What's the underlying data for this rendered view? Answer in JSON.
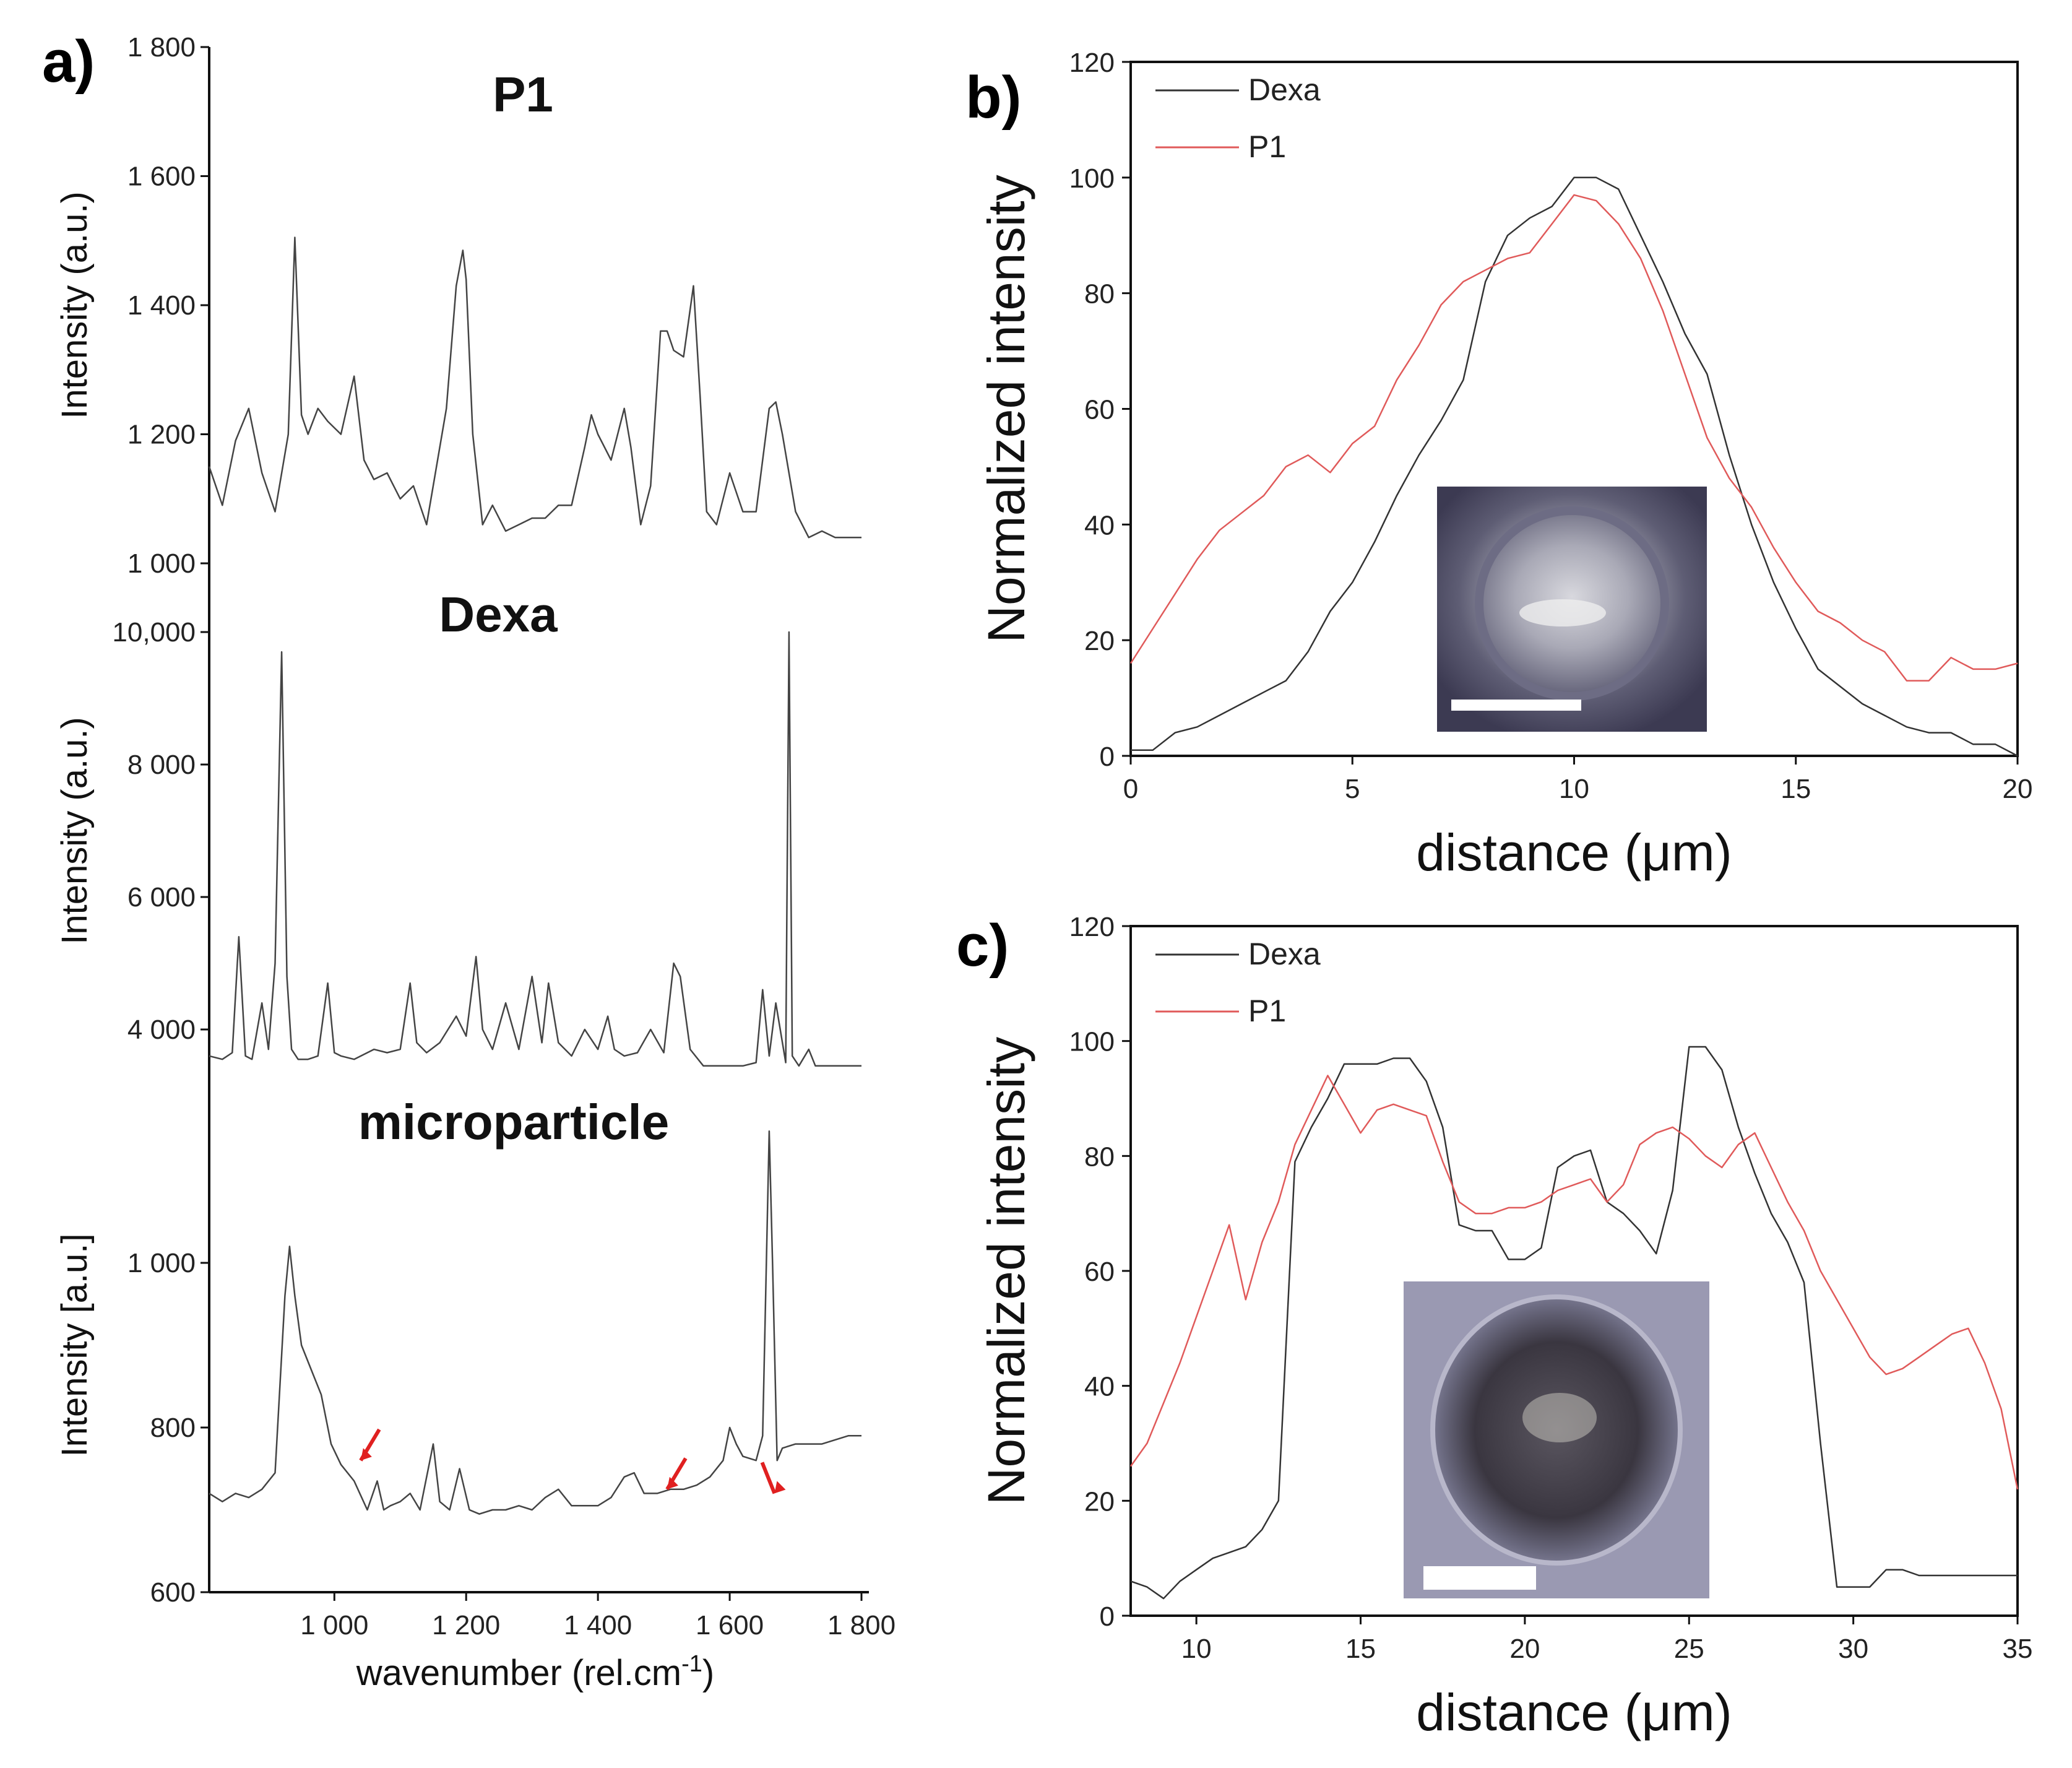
{
  "figure": {
    "panel_labels": [
      "a)",
      "b)",
      "c)"
    ]
  },
  "chart_data": [
    {
      "id": "a_p1",
      "type": "line",
      "title": "P1",
      "xlabel": "",
      "ylabel": "Intensity (a.u.)",
      "xlim": [
        810,
        1800
      ],
      "ylim": [
        1000,
        1800
      ],
      "yticks": [
        1000,
        1200,
        1400,
        1600,
        1800
      ],
      "ytick_labels": [
        "1 000",
        "1 200",
        "1 400",
        "1 600",
        "1 800"
      ],
      "series": [
        {
          "name": "P1 spectrum",
          "x": [
            810,
            830,
            850,
            870,
            890,
            910,
            930,
            940,
            950,
            960,
            975,
            990,
            1010,
            1030,
            1045,
            1060,
            1080,
            1100,
            1120,
            1140,
            1155,
            1170,
            1185,
            1195,
            1200,
            1210,
            1225,
            1240,
            1260,
            1280,
            1300,
            1320,
            1340,
            1360,
            1380,
            1390,
            1400,
            1420,
            1440,
            1450,
            1465,
            1480,
            1495,
            1505,
            1515,
            1530,
            1545,
            1555,
            1565,
            1580,
            1600,
            1620,
            1640,
            1660,
            1670,
            1680,
            1700,
            1720,
            1740,
            1760,
            1780,
            1800
          ],
          "values": [
            1150,
            1090,
            1190,
            1240,
            1140,
            1080,
            1200,
            1505,
            1230,
            1200,
            1240,
            1220,
            1200,
            1290,
            1160,
            1130,
            1140,
            1100,
            1120,
            1060,
            1150,
            1240,
            1430,
            1485,
            1440,
            1200,
            1060,
            1090,
            1050,
            1060,
            1070,
            1070,
            1090,
            1090,
            1180,
            1230,
            1200,
            1160,
            1240,
            1180,
            1060,
            1120,
            1360,
            1360,
            1330,
            1320,
            1430,
            1260,
            1080,
            1060,
            1140,
            1080,
            1080,
            1240,
            1250,
            1200,
            1080,
            1040,
            1050,
            1040,
            1040,
            1040
          ]
        }
      ]
    },
    {
      "id": "a_dexa",
      "type": "line",
      "title": "Dexa",
      "xlabel": "",
      "ylabel": "Intensity (a.u.)",
      "xlim": [
        810,
        1800
      ],
      "ylim": [
        3000,
        11000
      ],
      "yticks": [
        4000,
        6000,
        8000,
        10000
      ],
      "ytick_labels": [
        "4 000",
        "6 000",
        "8 000",
        "10,000"
      ],
      "series": [
        {
          "name": "Dexa spectrum",
          "x": [
            810,
            830,
            845,
            855,
            865,
            875,
            890,
            900,
            910,
            920,
            928,
            935,
            945,
            960,
            975,
            990,
            1000,
            1010,
            1030,
            1060,
            1080,
            1100,
            1115,
            1125,
            1140,
            1160,
            1185,
            1200,
            1215,
            1225,
            1240,
            1260,
            1280,
            1300,
            1315,
            1325,
            1340,
            1360,
            1380,
            1400,
            1415,
            1425,
            1440,
            1460,
            1480,
            1500,
            1515,
            1525,
            1540,
            1560,
            1580,
            1600,
            1620,
            1640,
            1650,
            1660,
            1670,
            1685,
            1690,
            1695,
            1705,
            1720,
            1730,
            1750,
            1770,
            1800
          ],
          "values": [
            3600,
            3550,
            3650,
            5400,
            3600,
            3550,
            4400,
            3700,
            5000,
            9700,
            4800,
            3700,
            3550,
            3550,
            3600,
            4700,
            3650,
            3600,
            3550,
            3700,
            3650,
            3700,
            4700,
            3800,
            3650,
            3800,
            4200,
            3900,
            5100,
            4000,
            3700,
            4400,
            3700,
            4800,
            3800,
            4700,
            3800,
            3600,
            4000,
            3700,
            4200,
            3700,
            3600,
            3650,
            4000,
            3650,
            5000,
            4800,
            3700,
            3450,
            3450,
            3450,
            3450,
            3500,
            4600,
            3600,
            4400,
            3500,
            10000,
            3600,
            3450,
            3700,
            3450,
            3450,
            3450,
            3450
          ]
        }
      ]
    },
    {
      "id": "a_micro",
      "type": "line",
      "title": "microparticle",
      "xlabel": "wavenumber (rel.cm",
      "xlabel_sup": "-1",
      "xlabel_end": ")",
      "ylabel": "Intensity [a.u.]",
      "xlim": [
        810,
        1800
      ],
      "ylim": [
        600,
        1200
      ],
      "xticks": [
        1000,
        1200,
        1400,
        1600,
        1800
      ],
      "xtick_labels": [
        "1 000",
        "1 200",
        "1 400",
        "1 600",
        "1 800"
      ],
      "yticks": [
        600,
        800,
        1000
      ],
      "ytick_labels": [
        "600",
        "800",
        "1 000"
      ],
      "annotations": [
        {
          "x": 1040,
          "y": 760
        },
        {
          "x": 1505,
          "y": 725
        },
        {
          "x": 1668,
          "y": 720
        }
      ],
      "series": [
        {
          "name": "microparticle spectrum",
          "x": [
            810,
            830,
            850,
            870,
            890,
            910,
            925,
            932,
            940,
            950,
            965,
            980,
            995,
            1010,
            1030,
            1050,
            1065,
            1075,
            1085,
            1100,
            1115,
            1130,
            1150,
            1160,
            1175,
            1190,
            1205,
            1220,
            1240,
            1260,
            1280,
            1300,
            1320,
            1340,
            1360,
            1380,
            1400,
            1420,
            1440,
            1455,
            1470,
            1490,
            1510,
            1530,
            1550,
            1570,
            1590,
            1600,
            1610,
            1620,
            1640,
            1650,
            1660,
            1665,
            1672,
            1680,
            1700,
            1720,
            1740,
            1760,
            1780,
            1800
          ],
          "values": [
            720,
            710,
            720,
            715,
            725,
            745,
            960,
            1020,
            960,
            900,
            870,
            840,
            780,
            755,
            735,
            700,
            735,
            700,
            705,
            710,
            720,
            700,
            780,
            710,
            700,
            750,
            700,
            695,
            700,
            700,
            705,
            700,
            715,
            725,
            705,
            705,
            705,
            715,
            740,
            745,
            720,
            720,
            725,
            725,
            730,
            740,
            760,
            800,
            780,
            765,
            760,
            790,
            1160,
            1000,
            760,
            775,
            780,
            780,
            780,
            785,
            790,
            790
          ]
        }
      ]
    },
    {
      "id": "b",
      "type": "line",
      "title": "",
      "xlabel": "distance (μm)",
      "ylabel": "Normalized intensity",
      "xlim": [
        0,
        20
      ],
      "ylim": [
        0,
        120
      ],
      "xticks": [
        0,
        5,
        10,
        15,
        20
      ],
      "yticks": [
        0,
        20,
        40,
        60,
        80,
        100,
        120
      ],
      "legend": [
        "Dexa",
        "P1"
      ],
      "series": [
        {
          "name": "Dexa",
          "color": "#333333",
          "x": [
            0,
            0.5,
            1,
            1.5,
            2,
            2.5,
            3,
            3.5,
            4,
            4.5,
            5,
            5.5,
            6,
            6.5,
            7,
            7.5,
            8,
            8.5,
            9,
            9.5,
            10,
            10.5,
            11,
            11.5,
            12,
            12.5,
            13,
            13.5,
            14,
            14.5,
            15,
            15.5,
            16,
            16.5,
            17,
            17.5,
            18,
            18.5,
            19,
            19.5,
            20
          ],
          "values": [
            1,
            1,
            4,
            5,
            7,
            9,
            11,
            13,
            18,
            25,
            30,
            37,
            45,
            52,
            58,
            65,
            82,
            90,
            93,
            95,
            100,
            100,
            98,
            90,
            82,
            73,
            66,
            52,
            40,
            30,
            22,
            15,
            12,
            9,
            7,
            5,
            4,
            4,
            2,
            2,
            0
          ]
        },
        {
          "name": "P1",
          "color": "#e05a5a",
          "x": [
            0,
            0.5,
            1,
            1.5,
            2,
            2.5,
            3,
            3.5,
            4,
            4.5,
            5,
            5.5,
            6,
            6.5,
            7,
            7.5,
            8,
            8.5,
            9,
            9.5,
            10,
            10.5,
            11,
            11.5,
            12,
            12.5,
            13,
            13.5,
            14,
            14.5,
            15,
            15.5,
            16,
            16.5,
            17,
            17.5,
            18,
            18.5,
            19,
            19.5,
            20
          ],
          "values": [
            16,
            22,
            28,
            34,
            39,
            42,
            45,
            50,
            52,
            49,
            54,
            57,
            65,
            71,
            78,
            82,
            84,
            86,
            87,
            92,
            97,
            96,
            92,
            86,
            77,
            66,
            55,
            48,
            43,
            36,
            30,
            25,
            23,
            20,
            18,
            13,
            13,
            17,
            15,
            15,
            16
          ]
        }
      ],
      "inset": {
        "desc": "micrograph",
        "scale_bar": true
      }
    },
    {
      "id": "c",
      "type": "line",
      "title": "",
      "xlabel": "distance (μm)",
      "ylabel": "Normalized intensity",
      "xlim": [
        8,
        35
      ],
      "ylim": [
        0,
        120
      ],
      "xticks": [
        10,
        15,
        20,
        25,
        30,
        35
      ],
      "yticks": [
        0,
        20,
        40,
        60,
        80,
        100,
        120
      ],
      "legend": [
        "Dexa",
        "P1"
      ],
      "series": [
        {
          "name": "Dexa",
          "color": "#333333",
          "x": [
            8,
            8.5,
            9,
            9.5,
            10,
            10.5,
            11,
            11.5,
            12,
            12.5,
            13,
            13.5,
            14,
            14.5,
            15,
            15.5,
            16,
            16.5,
            17,
            17.5,
            18,
            18.5,
            19,
            19.5,
            20,
            20.5,
            21,
            21.5,
            22,
            22.5,
            23,
            23.5,
            24,
            24.5,
            25,
            25.5,
            26,
            26.5,
            27,
            27.5,
            28,
            28.5,
            29,
            29.5,
            30,
            30.5,
            31,
            31.5,
            32,
            32.5,
            33,
            33.5,
            34,
            34.5,
            35
          ],
          "values": [
            6,
            5,
            3,
            6,
            8,
            10,
            11,
            12,
            15,
            20,
            79,
            85,
            90,
            96,
            96,
            96,
            97,
            97,
            93,
            85,
            68,
            67,
            67,
            62,
            62,
            64,
            78,
            80,
            81,
            72,
            70,
            67,
            63,
            74,
            99,
            99,
            95,
            85,
            77,
            70,
            65,
            58,
            30,
            5,
            5,
            5,
            8,
            8,
            7,
            7,
            7,
            7,
            7,
            7,
            7
          ]
        },
        {
          "name": "P1",
          "color": "#e05a5a",
          "x": [
            8,
            8.5,
            9,
            9.5,
            10,
            10.5,
            11,
            11.5,
            12,
            12.5,
            13,
            13.5,
            14,
            14.5,
            15,
            15.5,
            16,
            16.5,
            17,
            17.5,
            18,
            18.5,
            19,
            19.5,
            20,
            20.5,
            21,
            21.5,
            22,
            22.5,
            23,
            23.5,
            24,
            24.5,
            25,
            25.5,
            26,
            26.5,
            27,
            27.5,
            28,
            28.5,
            29,
            29.5,
            30,
            30.5,
            31,
            31.5,
            32,
            32.5,
            33,
            33.5,
            34,
            34.5,
            35
          ],
          "values": [
            26,
            30,
            37,
            44,
            52,
            60,
            68,
            55,
            65,
            72,
            82,
            88,
            94,
            89,
            84,
            88,
            89,
            88,
            87,
            79,
            72,
            70,
            70,
            71,
            71,
            72,
            74,
            75,
            76,
            72,
            75,
            82,
            84,
            85,
            83,
            80,
            78,
            82,
            84,
            78,
            72,
            67,
            60,
            55,
            50,
            45,
            42,
            43,
            45,
            47,
            49,
            50,
            44,
            36,
            22
          ]
        }
      ],
      "inset": {
        "desc": "micrograph",
        "scale_bar": true
      }
    }
  ]
}
